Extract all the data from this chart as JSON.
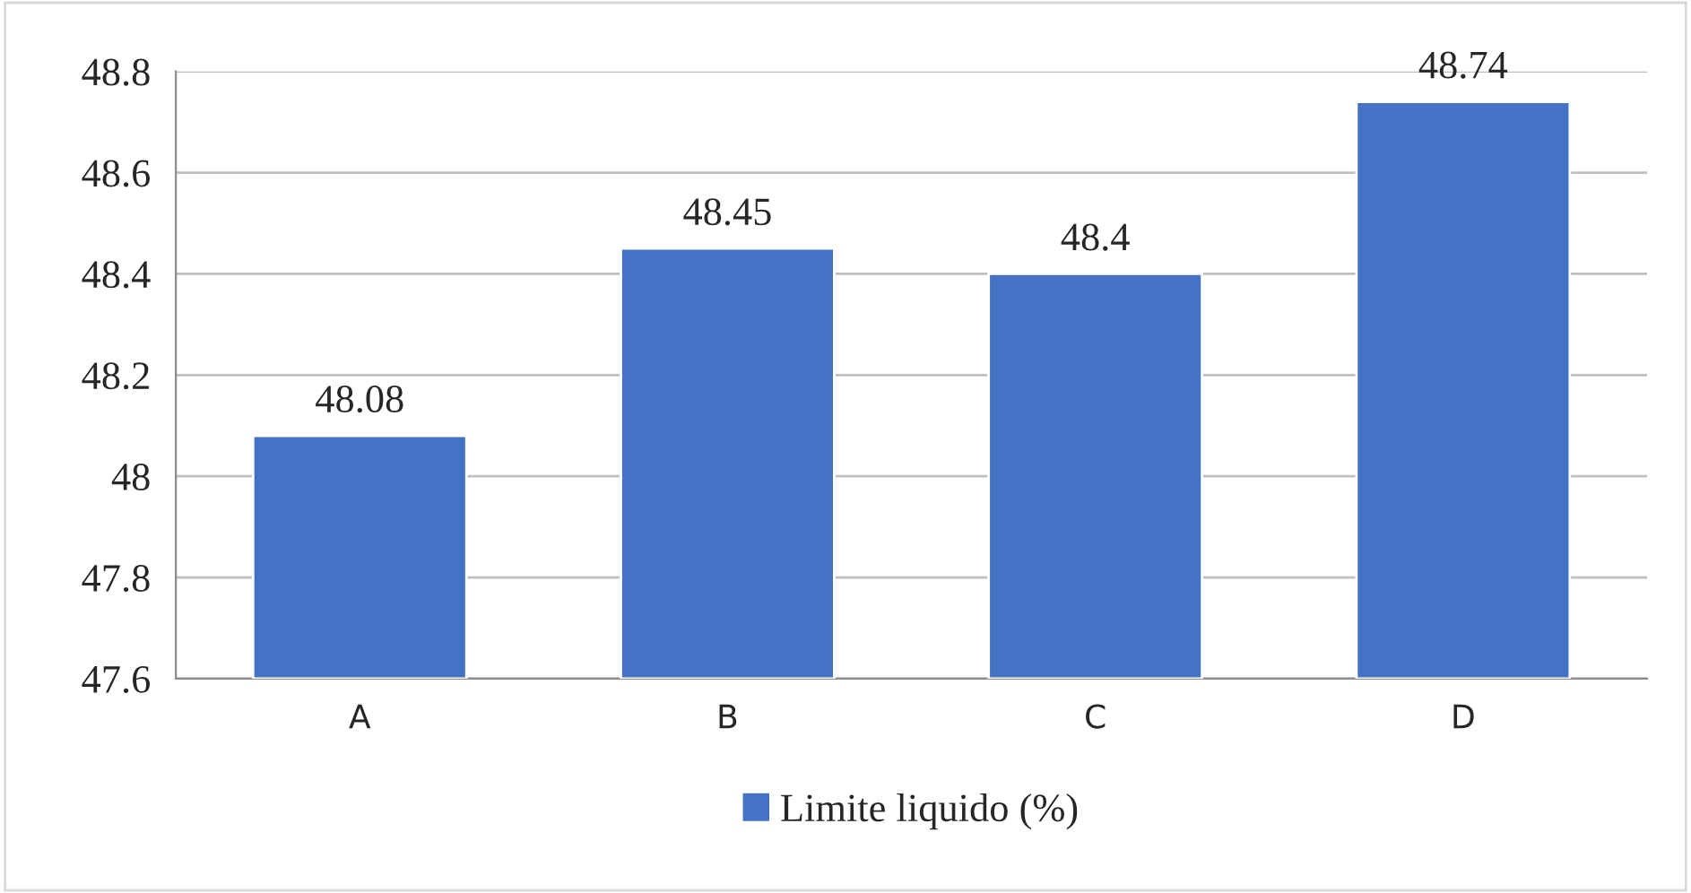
{
  "chart_data": {
    "type": "bar",
    "categories": [
      "A",
      "B",
      "C",
      "D"
    ],
    "series": [
      {
        "name": "Limite liquido (%)",
        "color": "#4472c4",
        "values": [
          48.08,
          48.45,
          48.4,
          48.74
        ]
      }
    ],
    "ylim": [
      47.6,
      48.8
    ],
    "yticks": [
      47.6,
      47.8,
      48,
      48.2,
      48.4,
      48.6,
      48.8
    ],
    "grid": "y",
    "legend": "bottom",
    "data_labels": true
  }
}
